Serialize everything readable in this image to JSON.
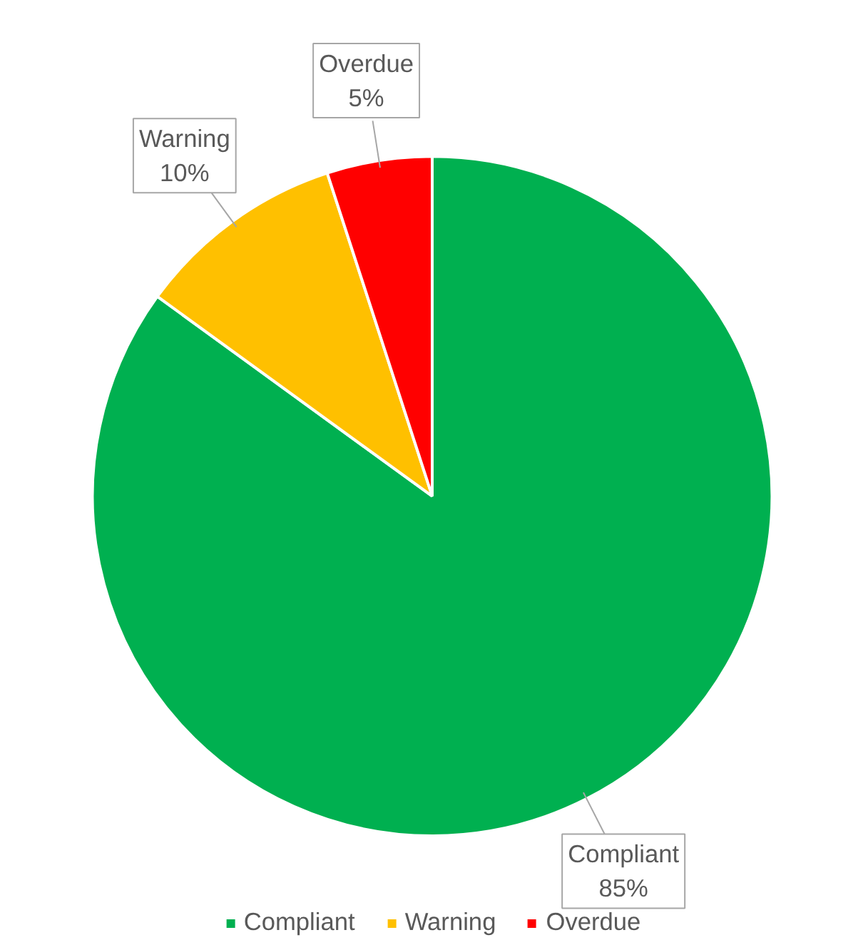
{
  "chart_data": {
    "type": "pie",
    "categories": [
      "Compliant",
      "Warning",
      "Overdue"
    ],
    "values": [
      85,
      10,
      5
    ],
    "value_labels": [
      "85%",
      "10%",
      "5%"
    ],
    "colors": [
      "#00b050",
      "#ffc000",
      "#ff0000"
    ],
    "legend": "bottom"
  }
}
